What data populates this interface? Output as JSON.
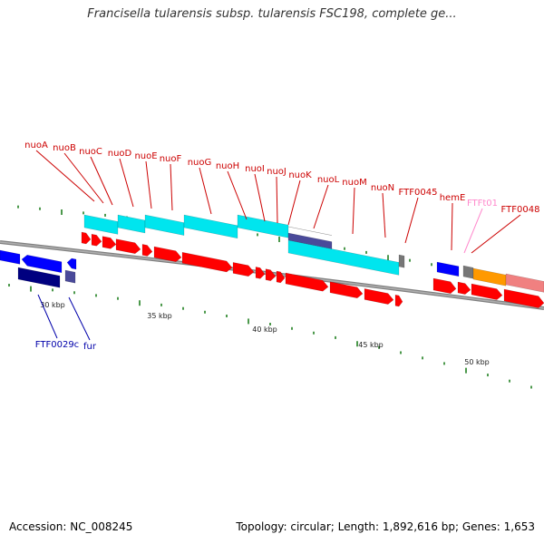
{
  "title": "Francisella tularensis subsp. tularensis FSC198, complete ge...",
  "footer": {
    "accession": "Accession: NC_008245",
    "summary": "Topology: circular; Length: 1,892,616 bp; Genes: 1,653"
  },
  "kbp_marks": [
    "30 kbp",
    "35 kbp",
    "40 kbp",
    "45 kbp",
    "50 kbp"
  ],
  "genes_forward": [
    "nuoA",
    "nuoB",
    "nuoC",
    "nuoD",
    "nuoE",
    "nuoF",
    "nuoG",
    "nuoH",
    "nuoI",
    "nuoJ",
    "nuoK",
    "nuoL",
    "nuoM",
    "nuoN",
    "FTF0045",
    "hemE",
    "FTFt01",
    "FTF0048"
  ],
  "genes_reverse": [
    "FTF0029c",
    "fur"
  ],
  "colors": {
    "forward_label": "#cc0000",
    "reverse_label": "#0000aa",
    "trna_label": "#ff88cc",
    "cds_forward": "#ff0000",
    "cds_reverse": "#0000ff",
    "gene_block": "#00e5ee",
    "dark_blue": "#000080",
    "slate": "#4a4a9a",
    "orange": "#ff9900",
    "salmon": "#f08080",
    "grey": "#777777",
    "tick": "#117711",
    "backbone": "#808080"
  }
}
